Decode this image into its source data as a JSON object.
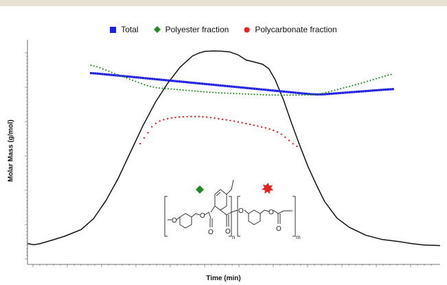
{
  "colors": {
    "top_bar": "#e8e2d2",
    "total": "#1f1fe0",
    "polyester": "#1f8a1f",
    "polycarbonate": "#e82020",
    "trace": "#111111"
  },
  "legend": [
    {
      "label": "Total",
      "marker": "square",
      "color": "#1f1fe0"
    },
    {
      "label": "Polyester fraction",
      "marker": "diamond",
      "color": "#1f8a1f"
    },
    {
      "label": "Polycarbonate fraction",
      "marker": "circle",
      "color": "#e82020"
    }
  ],
  "chart_data": {
    "type": "scatter",
    "xlabel": "Time (min)",
    "ylabel": "Molar Mass (g/mol)",
    "xlim": [
      0,
      100
    ],
    "ylim": [
      0,
      100
    ],
    "y_tick_labels_shown": false,
    "x_tick_labels_shown": false,
    "grid": false,
    "legend_position": "top-center",
    "series": [
      {
        "name": "Total",
        "marker": "square",
        "color": "#1f1fe0",
        "x": [
          15.4,
          70.2,
          88.8
        ],
        "y": [
          88.6,
          77.8,
          80.7
        ]
      },
      {
        "name": "Polyester fraction",
        "marker": "diamond",
        "color": "#1f8a1f",
        "x": [
          15.4,
          30,
          45,
          60,
          70.2,
          80,
          88.8
        ],
        "y": [
          92.8,
          81.5,
          78.9,
          77.6,
          77.8,
          83,
          88.4
        ]
      },
      {
        "name": "Polycarbonate fraction",
        "marker": "circle",
        "color": "#e82020",
        "x": [
          27.3,
          28.5,
          30,
          33,
          38,
          43,
          50,
          56,
          60,
          62,
          63.5,
          64.6,
          65.5
        ],
        "y": [
          51.0,
          57.9,
          62.8,
          65.9,
          67.1,
          67.0,
          64.8,
          62.3,
          60.2,
          58.0,
          55.0,
          53.0,
          51.0
        ]
      },
      {
        "name": "",
        "type": "line",
        "color": "#111111",
        "x": [
          0,
          1.5,
          3,
          6,
          9,
          13,
          16,
          19,
          22,
          25,
          28,
          31,
          34,
          37,
          40,
          41.5,
          43,
          45,
          47,
          49,
          51,
          53,
          55,
          57,
          58.5,
          60,
          62,
          64,
          66,
          68,
          70,
          72,
          75,
          78,
          82,
          86,
          90,
          93,
          96,
          100
        ],
        "y": [
          4.2,
          3.6,
          4.1,
          5.9,
          7.8,
          11.1,
          16.5,
          25.4,
          36.5,
          49.6,
          62.6,
          74.1,
          83.6,
          91.5,
          97.0,
          98.4,
          99.3,
          99.5,
          99.4,
          99.0,
          97.6,
          95.0,
          94.0,
          92.9,
          90.7,
          85.4,
          75.5,
          63.8,
          52.6,
          42.2,
          33.3,
          25.0,
          16.8,
          12.2,
          8.3,
          6.2,
          5.2,
          4.2,
          3.5,
          3.2
        ]
      }
    ],
    "annotations": [
      {
        "text": "n",
        "kind": "structure-subscript"
      },
      {
        "text": "m",
        "kind": "structure-subscript"
      }
    ]
  }
}
